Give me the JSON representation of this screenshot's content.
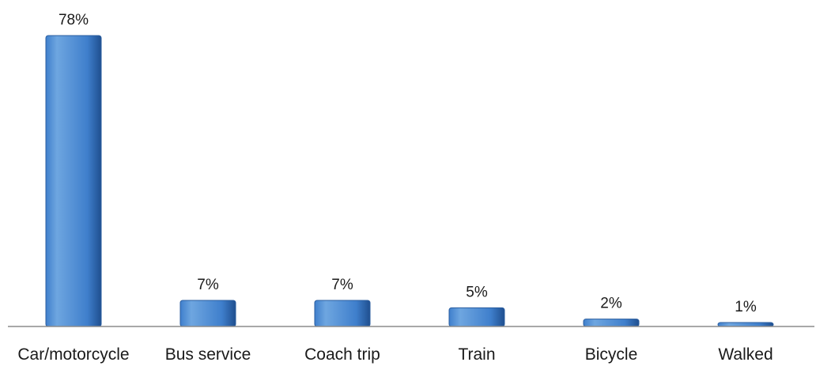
{
  "chart_data": {
    "type": "bar",
    "title": "",
    "xlabel": "",
    "ylabel": "",
    "ylim": [
      0,
      78
    ],
    "grid": false,
    "legend": "none",
    "categories": [
      "Car/motorcycle",
      "Bus service",
      "Coach trip",
      "Train",
      "Bicycle",
      "Walked"
    ],
    "values": [
      78,
      7,
      7,
      5,
      2,
      1
    ],
    "value_labels": [
      "78%",
      "7%",
      "7%",
      "5%",
      "2%",
      "1%"
    ],
    "colors": {
      "bar_light": "#6ea6e0",
      "bar_mid": "#3f7fcc",
      "bar_dark": "#1f4f8f",
      "bar_edge": "#2a5d9f",
      "axis": "#8c8c8c"
    }
  }
}
